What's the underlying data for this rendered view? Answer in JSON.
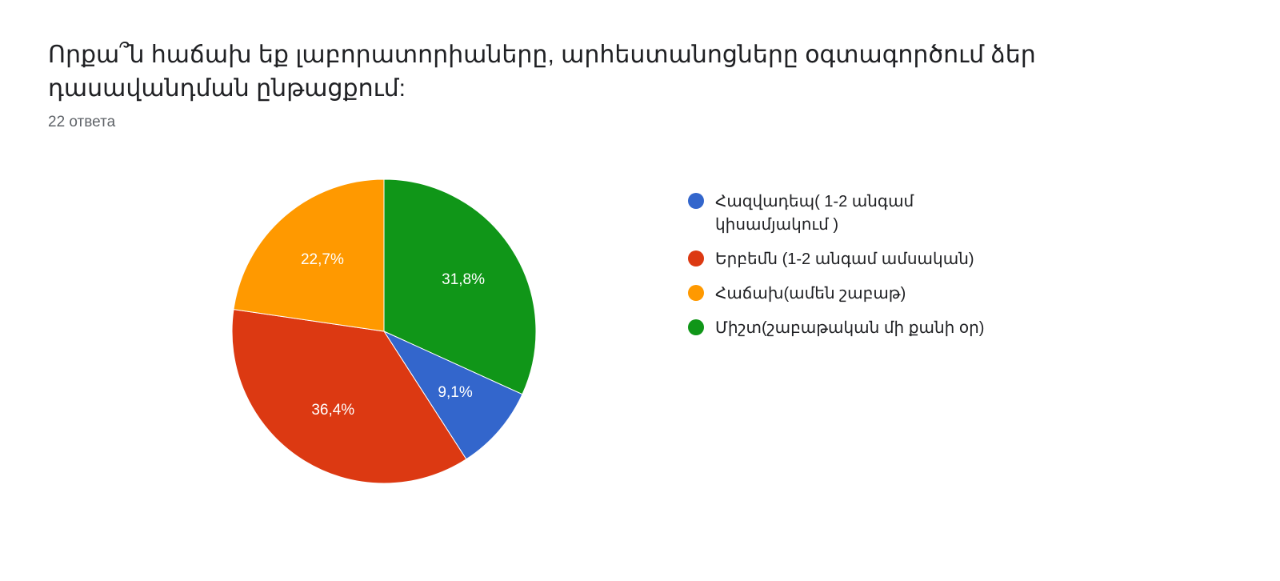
{
  "title": "Որքա՞ն հաճախ եք լաբորատորիաները, արհեստանոցները օգտագործում ձեր դասավանդման ընթացքում:",
  "subtitle": "22 ответа",
  "chart": {
    "type": "pie",
    "background_color": "#ffffff",
    "stroke_color": "#ffffff",
    "stroke_width": 1,
    "label_color": "#ffffff",
    "label_fontsize": 19,
    "slices": [
      {
        "label": "Հազվադեպ( 1-2 անգամ կիսամյակում )",
        "value": 9.1,
        "display": "9,1%",
        "color": "#3366cc"
      },
      {
        "label": "Երբեմն (1-2 անգամ ամսական)",
        "value": 36.4,
        "display": "36,4%",
        "color": "#dc3912"
      },
      {
        "label": "Հաճախ(ամեն շաբաթ)",
        "value": 22.7,
        "display": "22,7%",
        "color": "#ff9900"
      },
      {
        "label": "Միշտ(շաբաթական մի քանի օր)",
        "value": 31.8,
        "display": "31,8%",
        "color": "#109618"
      }
    ]
  },
  "legend": {
    "items": [
      {
        "color": "#3366cc",
        "label": "Հազվադեպ( 1-2 անգամ կիսամյակում )"
      },
      {
        "color": "#dc3912",
        "label": "Երբեմն (1-2 անգամ ամսական)"
      },
      {
        "color": "#ff9900",
        "label": "Հաճախ(ամեն շաբաթ)"
      },
      {
        "color": "#109618",
        "label": "Միշտ(շաբաթական մի քանի օր)"
      }
    ],
    "text_color": "#202124",
    "fontsize": 20
  }
}
